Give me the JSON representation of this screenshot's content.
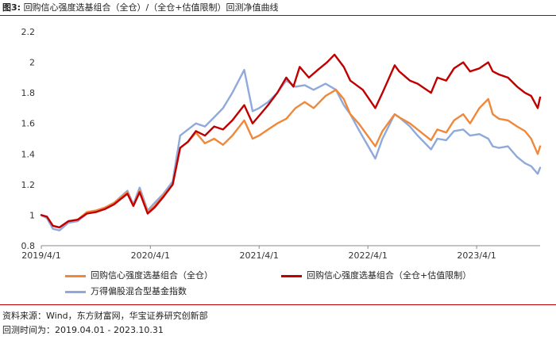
{
  "figure": {
    "label": "图3:",
    "title": "回购信心强度选基组合（全仓）/（全仓+估值限制）回测净值曲线"
  },
  "colors": {
    "accent_line": "#c00000",
    "full": "#f0883a",
    "valuation": "#c00000",
    "index": "#8fa9dc"
  },
  "chart_data": {
    "type": "line",
    "title": "",
    "xlabel": "",
    "ylabel": "",
    "ylim": [
      0.8,
      2.2
    ],
    "yticks": [
      "0.8",
      "1",
      "1.2",
      "1.4",
      "1.6",
      "1.8",
      "2",
      "2.2"
    ],
    "xticks": [
      "2019/4/1",
      "2020/4/1",
      "2021/4/1",
      "2022/4/1",
      "2023/4/1"
    ],
    "xlim": [
      "2019-04-01",
      "2023-10-31"
    ],
    "grid": false,
    "legend_position": "bottom",
    "series": [
      {
        "name": "回购信心强度选基组合（全仓）",
        "color": "#f0883a",
        "points": [
          [
            "2019-04-01",
            1.0
          ],
          [
            "2019-04-20",
            0.99
          ],
          [
            "2019-05-10",
            0.93
          ],
          [
            "2019-06-01",
            0.92
          ],
          [
            "2019-07-01",
            0.96
          ],
          [
            "2019-08-01",
            0.97
          ],
          [
            "2019-09-01",
            1.02
          ],
          [
            "2019-10-01",
            1.03
          ],
          [
            "2019-11-01",
            1.05
          ],
          [
            "2019-12-01",
            1.08
          ],
          [
            "2020-01-15",
            1.15
          ],
          [
            "2020-02-04",
            1.06
          ],
          [
            "2020-02-25",
            1.16
          ],
          [
            "2020-03-23",
            1.02
          ],
          [
            "2020-04-15",
            1.06
          ],
          [
            "2020-05-15",
            1.13
          ],
          [
            "2020-06-15",
            1.2
          ],
          [
            "2020-07-10",
            1.44
          ],
          [
            "2020-08-05",
            1.48
          ],
          [
            "2020-09-01",
            1.54
          ],
          [
            "2020-10-01",
            1.47
          ],
          [
            "2020-11-01",
            1.5
          ],
          [
            "2020-12-01",
            1.46
          ],
          [
            "2021-01-01",
            1.52
          ],
          [
            "2021-02-10",
            1.62
          ],
          [
            "2021-03-10",
            1.5
          ],
          [
            "2021-04-01",
            1.52
          ],
          [
            "2021-05-01",
            1.56
          ],
          [
            "2021-06-01",
            1.6
          ],
          [
            "2021-07-01",
            1.63
          ],
          [
            "2021-08-01",
            1.7
          ],
          [
            "2021-09-01",
            1.74
          ],
          [
            "2021-10-01",
            1.7
          ],
          [
            "2021-11-10",
            1.78
          ],
          [
            "2021-12-15",
            1.82
          ],
          [
            "2022-01-10",
            1.76
          ],
          [
            "2022-02-01",
            1.66
          ],
          [
            "2022-03-01",
            1.6
          ],
          [
            "2022-04-26",
            1.45
          ],
          [
            "2022-05-20",
            1.55
          ],
          [
            "2022-06-30",
            1.66
          ],
          [
            "2022-07-15",
            1.64
          ],
          [
            "2022-08-20",
            1.6
          ],
          [
            "2022-09-15",
            1.56
          ],
          [
            "2022-10-30",
            1.49
          ],
          [
            "2022-11-20",
            1.56
          ],
          [
            "2022-12-20",
            1.54
          ],
          [
            "2023-01-15",
            1.62
          ],
          [
            "2023-02-15",
            1.66
          ],
          [
            "2023-03-10",
            1.6
          ],
          [
            "2023-04-10",
            1.7
          ],
          [
            "2023-05-10",
            1.76
          ],
          [
            "2023-05-25",
            1.66
          ],
          [
            "2023-06-15",
            1.63
          ],
          [
            "2023-07-15",
            1.62
          ],
          [
            "2023-08-15",
            1.58
          ],
          [
            "2023-09-10",
            1.55
          ],
          [
            "2023-10-01",
            1.5
          ],
          [
            "2023-10-23",
            1.4
          ],
          [
            "2023-10-31",
            1.45
          ]
        ]
      },
      {
        "name": "回购信心强度选基组合（全仓+估值限制）",
        "color": "#c00000",
        "points": [
          [
            "2019-04-01",
            1.0
          ],
          [
            "2019-04-20",
            0.99
          ],
          [
            "2019-05-10",
            0.93
          ],
          [
            "2019-06-01",
            0.92
          ],
          [
            "2019-07-01",
            0.96
          ],
          [
            "2019-08-01",
            0.97
          ],
          [
            "2019-09-01",
            1.01
          ],
          [
            "2019-10-01",
            1.02
          ],
          [
            "2019-11-01",
            1.04
          ],
          [
            "2019-12-01",
            1.07
          ],
          [
            "2020-01-15",
            1.14
          ],
          [
            "2020-02-04",
            1.06
          ],
          [
            "2020-02-25",
            1.15
          ],
          [
            "2020-03-23",
            1.01
          ],
          [
            "2020-04-15",
            1.05
          ],
          [
            "2020-05-15",
            1.12
          ],
          [
            "2020-06-15",
            1.2
          ],
          [
            "2020-07-10",
            1.44
          ],
          [
            "2020-08-05",
            1.48
          ],
          [
            "2020-09-01",
            1.55
          ],
          [
            "2020-10-01",
            1.52
          ],
          [
            "2020-11-01",
            1.58
          ],
          [
            "2020-12-01",
            1.56
          ],
          [
            "2021-01-01",
            1.62
          ],
          [
            "2021-02-10",
            1.72
          ],
          [
            "2021-03-10",
            1.6
          ],
          [
            "2021-04-01",
            1.65
          ],
          [
            "2021-05-01",
            1.72
          ],
          [
            "2021-06-01",
            1.8
          ],
          [
            "2021-07-01",
            1.9
          ],
          [
            "2021-07-25",
            1.84
          ],
          [
            "2021-08-15",
            1.97
          ],
          [
            "2021-09-15",
            1.9
          ],
          [
            "2021-10-15",
            1.95
          ],
          [
            "2021-11-15",
            2.0
          ],
          [
            "2021-12-10",
            2.05
          ],
          [
            "2022-01-10",
            1.97
          ],
          [
            "2022-02-01",
            1.88
          ],
          [
            "2022-03-15",
            1.82
          ],
          [
            "2022-04-26",
            1.7
          ],
          [
            "2022-05-20",
            1.8
          ],
          [
            "2022-06-30",
            1.98
          ],
          [
            "2022-07-15",
            1.94
          ],
          [
            "2022-08-20",
            1.88
          ],
          [
            "2022-09-15",
            1.86
          ],
          [
            "2022-10-30",
            1.8
          ],
          [
            "2022-11-20",
            1.9
          ],
          [
            "2022-12-20",
            1.88
          ],
          [
            "2023-01-15",
            1.96
          ],
          [
            "2023-02-15",
            2.0
          ],
          [
            "2023-03-10",
            1.94
          ],
          [
            "2023-04-10",
            1.96
          ],
          [
            "2023-05-10",
            2.0
          ],
          [
            "2023-05-25",
            1.94
          ],
          [
            "2023-06-15",
            1.92
          ],
          [
            "2023-07-15",
            1.9
          ],
          [
            "2023-08-15",
            1.84
          ],
          [
            "2023-09-10",
            1.8
          ],
          [
            "2023-10-01",
            1.78
          ],
          [
            "2023-10-23",
            1.7
          ],
          [
            "2023-10-31",
            1.77
          ]
        ]
      },
      {
        "name": "万得偏股混合型基金指数",
        "color": "#8fa9dc",
        "points": [
          [
            "2019-04-01",
            1.0
          ],
          [
            "2019-04-20",
            0.98
          ],
          [
            "2019-05-10",
            0.91
          ],
          [
            "2019-06-01",
            0.9
          ],
          [
            "2019-07-01",
            0.95
          ],
          [
            "2019-08-01",
            0.96
          ],
          [
            "2019-09-01",
            1.01
          ],
          [
            "2019-10-01",
            1.02
          ],
          [
            "2019-11-01",
            1.05
          ],
          [
            "2019-12-01",
            1.08
          ],
          [
            "2020-01-15",
            1.16
          ],
          [
            "2020-02-04",
            1.07
          ],
          [
            "2020-02-25",
            1.18
          ],
          [
            "2020-03-23",
            1.03
          ],
          [
            "2020-04-15",
            1.08
          ],
          [
            "2020-05-15",
            1.14
          ],
          [
            "2020-06-15",
            1.22
          ],
          [
            "2020-07-10",
            1.52
          ],
          [
            "2020-08-05",
            1.56
          ],
          [
            "2020-09-01",
            1.6
          ],
          [
            "2020-10-01",
            1.58
          ],
          [
            "2020-11-01",
            1.64
          ],
          [
            "2020-12-01",
            1.7
          ],
          [
            "2021-01-01",
            1.8
          ],
          [
            "2021-02-10",
            1.95
          ],
          [
            "2021-03-10",
            1.68
          ],
          [
            "2021-04-01",
            1.7
          ],
          [
            "2021-05-01",
            1.74
          ],
          [
            "2021-06-01",
            1.8
          ],
          [
            "2021-07-01",
            1.88
          ],
          [
            "2021-08-01",
            1.84
          ],
          [
            "2021-09-01",
            1.85
          ],
          [
            "2021-10-01",
            1.82
          ],
          [
            "2021-11-10",
            1.86
          ],
          [
            "2021-12-15",
            1.82
          ],
          [
            "2022-01-10",
            1.72
          ],
          [
            "2022-02-01",
            1.66
          ],
          [
            "2022-03-01",
            1.56
          ],
          [
            "2022-04-26",
            1.37
          ],
          [
            "2022-05-20",
            1.5
          ],
          [
            "2022-06-30",
            1.66
          ],
          [
            "2022-07-15",
            1.64
          ],
          [
            "2022-08-20",
            1.58
          ],
          [
            "2022-09-15",
            1.52
          ],
          [
            "2022-10-30",
            1.43
          ],
          [
            "2022-11-20",
            1.5
          ],
          [
            "2022-12-20",
            1.49
          ],
          [
            "2023-01-15",
            1.55
          ],
          [
            "2023-02-15",
            1.56
          ],
          [
            "2023-03-10",
            1.52
          ],
          [
            "2023-04-10",
            1.53
          ],
          [
            "2023-05-10",
            1.5
          ],
          [
            "2023-05-25",
            1.45
          ],
          [
            "2023-06-15",
            1.44
          ],
          [
            "2023-07-15",
            1.45
          ],
          [
            "2023-08-15",
            1.38
          ],
          [
            "2023-09-10",
            1.34
          ],
          [
            "2023-10-01",
            1.32
          ],
          [
            "2023-10-23",
            1.27
          ],
          [
            "2023-10-31",
            1.31
          ]
        ]
      }
    ]
  },
  "footer": {
    "source": "资料来源：Wind，东方财富网，华宝证券研究创新部",
    "period": "回测时间为：2019.04.01 - 2023.10.31"
  }
}
